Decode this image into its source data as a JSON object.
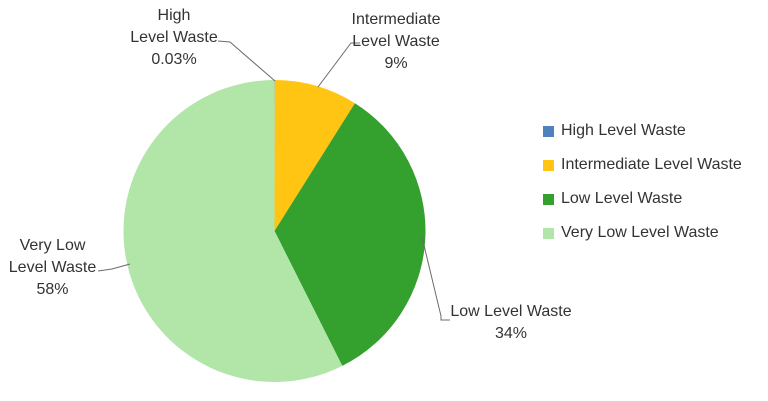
{
  "background": "#ffffff",
  "text_color": "#333333",
  "leader_line_color": "#6b6b6b",
  "chart_data": {
    "type": "pie",
    "title": "",
    "start_angle_deg": 0,
    "direction": "clockwise",
    "legend_position": "right",
    "slices": [
      {
        "label": "High Level Waste",
        "value": 0.03,
        "display": "0.03%",
        "color": "#4D82BE"
      },
      {
        "label": "Intermediate Level Waste",
        "value": 9,
        "display": "9%",
        "color": "#FFC512"
      },
      {
        "label": "Low Level Waste",
        "value": 34,
        "display": "34%",
        "color": "#34A02E"
      },
      {
        "label": "Very Low Level Waste",
        "value": 58,
        "display": "58%",
        "color": "#B2E5A8"
      }
    ]
  },
  "callouts": [
    {
      "for": "High Level Waste",
      "lines": [
        "High",
        "Level Waste",
        "0.03%"
      ]
    },
    {
      "for": "Intermediate Level Waste",
      "lines": [
        "Intermediate",
        "Level Waste",
        "9%"
      ]
    },
    {
      "for": "Very Low Level Waste",
      "lines": [
        "Very Low",
        "Level Waste",
        "58%"
      ]
    },
    {
      "for": "Low Level Waste",
      "lines": [
        "Low Level Waste",
        "34%"
      ]
    }
  ]
}
